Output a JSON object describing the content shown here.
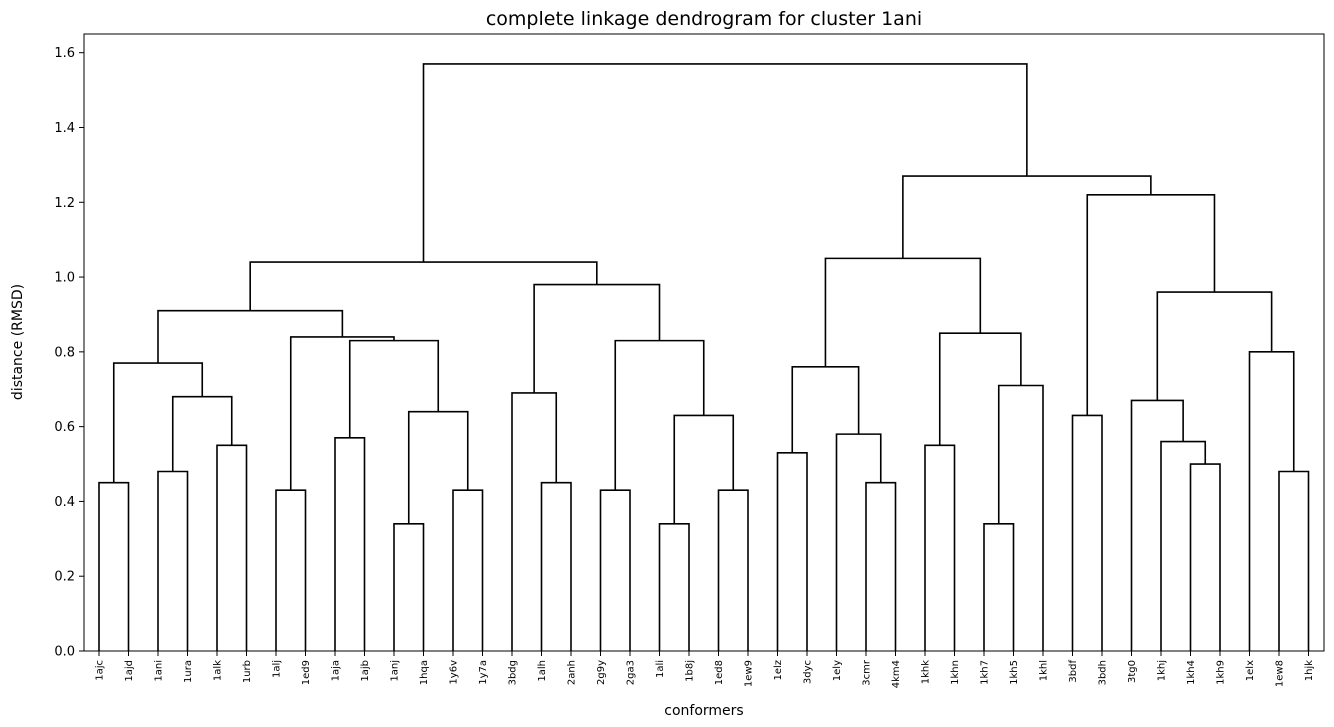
{
  "chart_data": {
    "type": "dendrogram",
    "title": "complete linkage dendrogram for cluster 1ani",
    "xlabel": "conformers",
    "ylabel": "distance (RMSD)",
    "ylim": [
      0,
      1.65
    ],
    "yticks": [
      0.0,
      0.2,
      0.4,
      0.6,
      0.8,
      1.0,
      1.2,
      1.4,
      1.6
    ],
    "grid": false,
    "line_color": "#000000",
    "leaves": [
      "1ajc",
      "1ajd",
      "1ani",
      "1ura",
      "1alk",
      "1urb",
      "1alj",
      "1ed9",
      "1aja",
      "1ajb",
      "1anj",
      "1hqa",
      "1y6v",
      "1y7a",
      "3bdg",
      "1alh",
      "2anh",
      "2g9y",
      "2ga3",
      "1ali",
      "1b8j",
      "1ed8",
      "1ew9",
      "1elz",
      "3dyc",
      "1ely",
      "3cmr",
      "4km4",
      "1khk",
      "1khn",
      "1kh7",
      "1kh5",
      "1khl",
      "3bdf",
      "3bdh",
      "3tg0",
      "1khj",
      "1kh4",
      "1kh9",
      "1elx",
      "1ew8",
      "1hjk"
    ],
    "merges": [
      {
        "left": 0,
        "right": 1,
        "height": 0.45
      },
      {
        "left": 2,
        "right": 3,
        "height": 0.48
      },
      {
        "left": 4,
        "right": 5,
        "height": 0.55
      },
      {
        "left": 6,
        "right": 7,
        "height": 0.43
      },
      {
        "left": 8,
        "right": 9,
        "height": 0.57
      },
      {
        "left": 10,
        "right": 11,
        "height": 0.34
      },
      {
        "left": 12,
        "right": 13,
        "height": 0.43
      },
      {
        "left": 15,
        "right": 16,
        "height": 0.45
      },
      {
        "left": 17,
        "right": 18,
        "height": 0.43
      },
      {
        "left": 19,
        "right": 20,
        "height": 0.34
      },
      {
        "left": 21,
        "right": 22,
        "height": 0.43
      },
      {
        "left": 23,
        "right": 24,
        "height": 0.53
      },
      {
        "left": 26,
        "right": 27,
        "height": 0.45
      },
      {
        "left": 28,
        "right": 29,
        "height": 0.55
      },
      {
        "left": 30,
        "right": 31,
        "height": 0.34
      },
      {
        "left": 33,
        "right": 34,
        "height": 0.63
      },
      {
        "left": 37,
        "right": 38,
        "height": 0.5
      },
      {
        "left": 40,
        "right": 41,
        "height": 0.48
      },
      {
        "left": "n1",
        "right": "n2",
        "height": 0.68
      },
      {
        "left": "n0",
        "right": "n18",
        "height": 0.77
      },
      {
        "left": "n5",
        "right": "n6",
        "height": 0.64
      },
      {
        "left": "n4",
        "right": "n20",
        "height": 0.83
      },
      {
        "left": "n3",
        "right": "n21",
        "height": 0.84
      },
      {
        "left": "n19",
        "right": "n22",
        "height": 0.91
      },
      {
        "left": 14,
        "right": "n7",
        "height": 0.69
      },
      {
        "left": "n9",
        "right": "n10",
        "height": 0.63
      },
      {
        "left": "n8",
        "right": "n25",
        "height": 0.83
      },
      {
        "left": "n24",
        "right": "n26",
        "height": 0.98
      },
      {
        "left": "n23",
        "right": "n27",
        "height": 1.04
      },
      {
        "left": 25,
        "right": "n12",
        "height": 0.58
      },
      {
        "left": "n11",
        "right": "n29",
        "height": 0.76
      },
      {
        "left": "n14",
        "right": 32,
        "height": 0.71
      },
      {
        "left": "n13",
        "right": "n31",
        "height": 0.85
      },
      {
        "left": "n30",
        "right": "n32",
        "height": 1.05
      },
      {
        "left": 36,
        "right": "n16",
        "height": 0.56
      },
      {
        "left": 35,
        "right": "n34",
        "height": 0.67
      },
      {
        "left": 39,
        "right": "n17",
        "height": 0.8
      },
      {
        "left": "n35",
        "right": "n36",
        "height": 0.96
      },
      {
        "left": "n15",
        "right": "n37",
        "height": 1.22
      },
      {
        "left": "n33",
        "right": "n38",
        "height": 1.27
      },
      {
        "left": "n28",
        "right": "n39",
        "height": 1.57
      }
    ]
  }
}
